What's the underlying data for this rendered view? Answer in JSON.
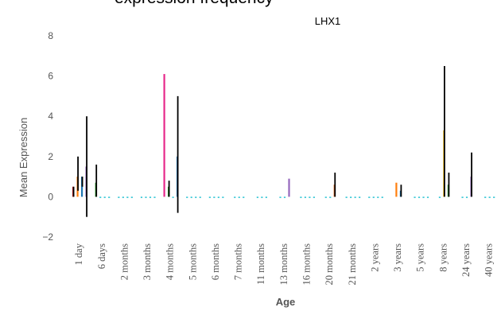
{
  "header_partial": "expression frequency",
  "chart_data": {
    "type": "bar",
    "title": "LHX1",
    "xlabel": "Age",
    "ylabel": "Mean Expression",
    "ylim": [
      -2,
      8
    ],
    "yticks": [
      8,
      6,
      4,
      2,
      0,
      -2
    ],
    "grid": false,
    "categories": [
      "1 day",
      "6 days",
      "2 months",
      "3 months",
      "4 months",
      "5 months",
      "6 months",
      "7 months",
      "11 months",
      "13 months",
      "16 months",
      "20 months",
      "21 months",
      "2 years",
      "3 years",
      "5 years",
      "8 years",
      "24 years",
      "40 years"
    ],
    "groups": [
      {
        "category": "1 day",
        "bars": [
          {
            "value": 0.5,
            "err_lo": 0.0,
            "err_hi": 0.5,
            "color": "#d62728"
          },
          {
            "value": 1.0,
            "err_lo": 0.3,
            "err_hi": 2.0,
            "color": "#ff7f0e"
          },
          {
            "value": 1.0,
            "err_lo": 0.5,
            "err_hi": 1.0,
            "color": "#1f77b4"
          },
          {
            "value": 1.5,
            "err_lo": -1.0,
            "err_hi": 4.0,
            "color": "#9467bd"
          }
        ]
      },
      {
        "category": "6 days",
        "bars": [
          {
            "value": 0.7,
            "err_lo": 0.0,
            "err_hi": 1.6,
            "color": "#2ca02c"
          },
          {
            "value": 0.0,
            "color": "#17becf"
          },
          {
            "value": 0.0,
            "color": "#17becf"
          },
          {
            "value": 0.0,
            "color": "#17becf"
          }
        ]
      },
      {
        "category": "2 months",
        "bars": [
          {
            "value": 0.0,
            "color": "#17becf"
          },
          {
            "value": 0.0,
            "color": "#17becf"
          },
          {
            "value": 0.0,
            "color": "#17becf"
          },
          {
            "value": 0.0,
            "color": "#17becf"
          }
        ]
      },
      {
        "category": "3 months",
        "bars": [
          {
            "value": 0.0,
            "color": "#17becf"
          },
          {
            "value": 0.0,
            "color": "#17becf"
          },
          {
            "value": 0.0,
            "color": "#17becf"
          },
          {
            "value": 0.0,
            "color": "#17becf"
          }
        ]
      },
      {
        "category": "4 months",
        "bars": [
          {
            "value": 6.1,
            "color": "#e7298a"
          },
          {
            "value": 0.5,
            "err_lo": 0.0,
            "err_hi": 0.8,
            "color": "#2ca02c"
          },
          {
            "value": 0.0,
            "color": "#17becf"
          },
          {
            "value": 2.0,
            "err_lo": -0.8,
            "err_hi": 5.0,
            "color": "#1f77b4"
          }
        ]
      },
      {
        "category": "5 months",
        "bars": [
          {
            "value": 0.0,
            "color": "#17becf"
          },
          {
            "value": 0.0,
            "color": "#17becf"
          },
          {
            "value": 0.0,
            "color": "#17becf"
          },
          {
            "value": 0.0,
            "color": "#17becf"
          }
        ]
      },
      {
        "category": "6 months",
        "bars": [
          {
            "value": 0.0,
            "color": "#17becf"
          },
          {
            "value": 0.0,
            "color": "#17becf"
          },
          {
            "value": 0.0,
            "color": "#17becf"
          },
          {
            "value": 0.0,
            "color": "#17becf"
          }
        ]
      },
      {
        "category": "7 months",
        "bars": [
          {
            "value": 0.0,
            "color": "#17becf"
          },
          {
            "value": 0.0,
            "color": "#17becf"
          },
          {
            "value": 0.0,
            "color": "#17becf"
          }
        ]
      },
      {
        "category": "11 months",
        "bars": [
          {
            "value": 0.0,
            "color": "#17becf"
          },
          {
            "value": 0.0,
            "color": "#17becf"
          },
          {
            "value": 0.0,
            "color": "#17becf"
          }
        ]
      },
      {
        "category": "13 months",
        "bars": [
          {
            "value": 0.0,
            "color": "#17becf"
          },
          {
            "value": 0.0,
            "color": "#17becf"
          },
          {
            "value": 0.9,
            "color": "#9467bd"
          }
        ]
      },
      {
        "category": "16 months",
        "bars": [
          {
            "value": 0.0,
            "color": "#17becf"
          },
          {
            "value": 0.0,
            "color": "#17becf"
          },
          {
            "value": 0.0,
            "color": "#17becf"
          },
          {
            "value": 0.0,
            "color": "#17becf"
          }
        ]
      },
      {
        "category": "20 months",
        "bars": [
          {
            "value": 0.0,
            "color": "#17becf"
          },
          {
            "value": 0.0,
            "color": "#17becf"
          },
          {
            "value": 0.6,
            "err_lo": 0.0,
            "err_hi": 1.2,
            "color": "#d95f02"
          }
        ]
      },
      {
        "category": "21 months",
        "bars": [
          {
            "value": 0.0,
            "color": "#17becf"
          },
          {
            "value": 0.0,
            "color": "#17becf"
          },
          {
            "value": 0.0,
            "color": "#17becf"
          },
          {
            "value": 0.0,
            "color": "#17becf"
          }
        ]
      },
      {
        "category": "2 years",
        "bars": [
          {
            "value": 0.0,
            "color": "#17becf"
          },
          {
            "value": 0.0,
            "color": "#17becf"
          },
          {
            "value": 0.0,
            "color": "#17becf"
          },
          {
            "value": 0.0,
            "color": "#17becf"
          }
        ]
      },
      {
        "category": "3 years",
        "bars": [
          {
            "value": 0.7,
            "color": "#ff7f0e"
          },
          {
            "value": 0.3,
            "err_lo": 0.0,
            "err_hi": 0.6,
            "color": "#1f77b4"
          }
        ]
      },
      {
        "category": "5 years",
        "bars": [
          {
            "value": 0.0,
            "color": "#17becf"
          },
          {
            "value": 0.0,
            "color": "#17becf"
          },
          {
            "value": 0.0,
            "color": "#17becf"
          },
          {
            "value": 0.0,
            "color": "#17becf"
          }
        ]
      },
      {
        "category": "8 years",
        "bars": [
          {
            "value": 0.0,
            "color": "#17becf"
          },
          {
            "value": 3.3,
            "err_lo": 0.0,
            "err_hi": 6.5,
            "color": "#e6ab02"
          },
          {
            "value": 0.6,
            "err_lo": 0.0,
            "err_hi": 1.2,
            "color": "#2ca02c"
          }
        ]
      },
      {
        "category": "24 years",
        "bars": [
          {
            "value": 0.0,
            "color": "#17becf"
          },
          {
            "value": 0.0,
            "color": "#17becf"
          },
          {
            "value": 1.0,
            "err_lo": 0.0,
            "err_hi": 2.2,
            "color": "#9467bd"
          }
        ]
      },
      {
        "category": "40 years",
        "bars": [
          {
            "value": 0.0,
            "color": "#17becf"
          },
          {
            "value": 0.0,
            "color": "#17becf"
          },
          {
            "value": 0.0,
            "color": "#17becf"
          }
        ]
      }
    ]
  }
}
